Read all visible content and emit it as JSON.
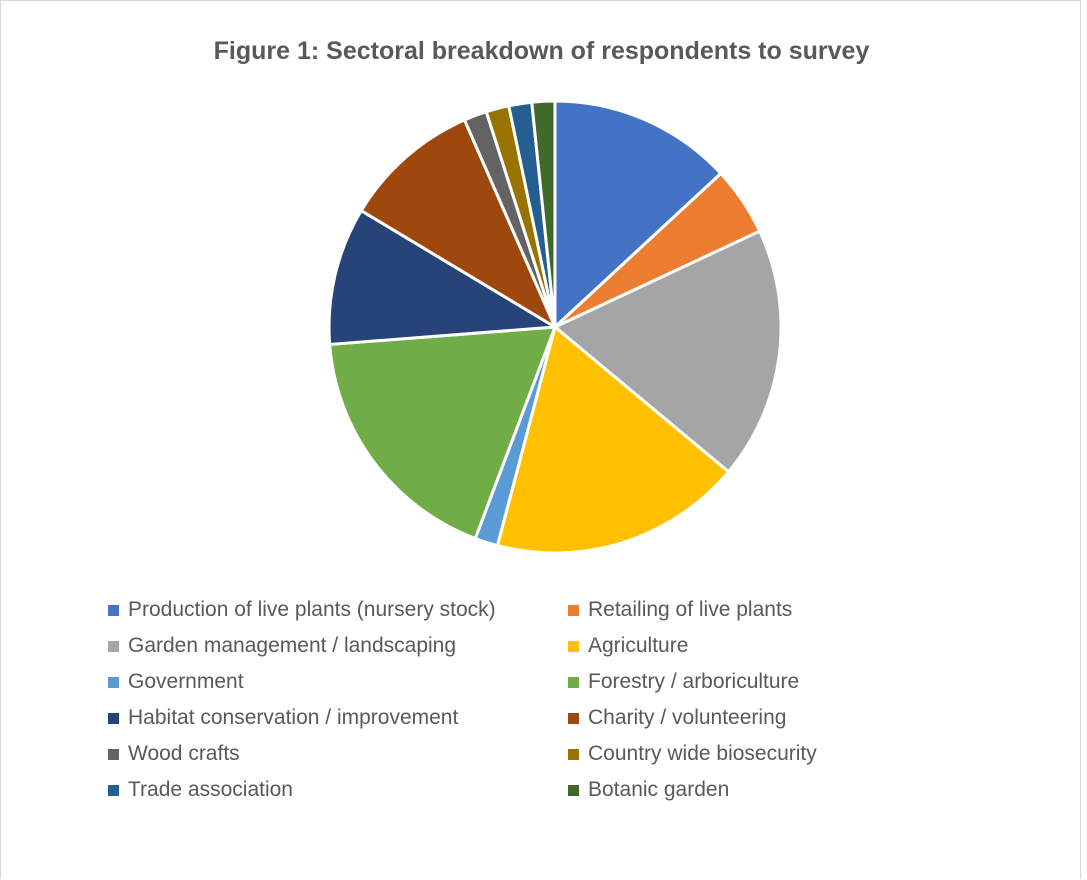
{
  "chart_data": {
    "type": "pie",
    "title": "Figure 1: Sectoral breakdown of respondents to survey",
    "legend_position": "bottom",
    "categories": [
      "Production of live plants (nursery stock)",
      "Retailing of live plants",
      "Garden management / landscaping",
      "Agriculture",
      "Government",
      "Forestry / arboriculture",
      "Habitat conservation / improvement",
      "Charity / volunteering",
      "Wood crafts",
      "Country wide biosecurity",
      "Trade association",
      "Botanic garden"
    ],
    "values": [
      8,
      3,
      11,
      11,
      1,
      11,
      6,
      6,
      1,
      1,
      1,
      1
    ],
    "colors": [
      "#4472C4",
      "#ED7D31",
      "#A5A5A5",
      "#FFC000",
      "#5B9BD5",
      "#70AD47",
      "#264478",
      "#9E480E",
      "#636363",
      "#997300",
      "#255E91",
      "#43682B"
    ]
  }
}
